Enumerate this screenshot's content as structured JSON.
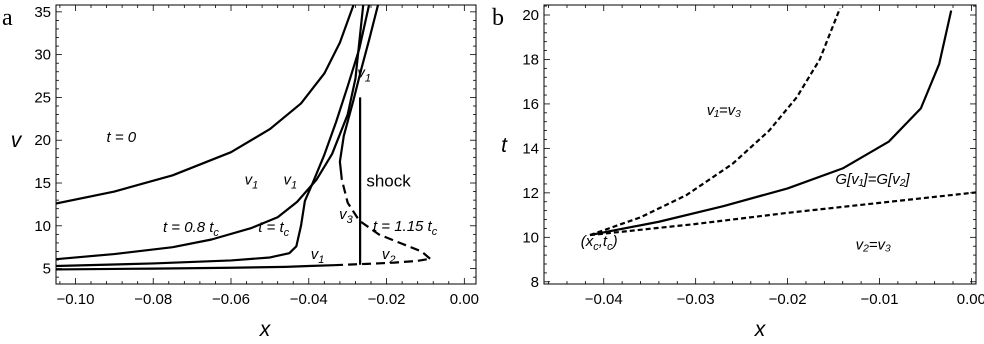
{
  "chart_data": [
    {
      "panel": "a",
      "type": "line",
      "xlabel": "x",
      "ylabel": "v",
      "xlim": [
        -0.105,
        0.003
      ],
      "ylim": [
        3.2,
        35.8
      ],
      "xticks": [
        -0.1,
        -0.08,
        -0.06,
        -0.04,
        -0.02,
        0.0
      ],
      "xtick_labels": [
        "−0.10",
        "−0.08",
        "−0.06",
        "−0.04",
        "−0.02",
        "0.00"
      ],
      "yticks": [
        5,
        10,
        15,
        20,
        25,
        30,
        35
      ],
      "ytick_labels": [
        "5",
        "10",
        "15",
        "20",
        "25",
        "30",
        "35"
      ],
      "series": [
        {
          "style": "solid",
          "x": [
            -0.105,
            -0.09,
            -0.075,
            -0.06,
            -0.05,
            -0.042,
            -0.036,
            -0.032,
            -0.0285
          ],
          "y": [
            12.6,
            14.0,
            15.9,
            18.6,
            21.3,
            24.3,
            27.8,
            31.4,
            35.8
          ]
        },
        {
          "style": "solid",
          "x": [
            -0.105,
            -0.09,
            -0.075,
            -0.065,
            -0.055,
            -0.048,
            -0.043,
            -0.038,
            -0.034,
            -0.03,
            -0.028,
            -0.026
          ],
          "y": [
            6.1,
            6.7,
            7.5,
            8.4,
            9.7,
            11.0,
            12.8,
            15.4,
            18.4,
            23.0,
            27.2,
            35.8
          ]
        },
        {
          "style": "solid",
          "x": [
            -0.105,
            -0.08,
            -0.06,
            -0.05,
            -0.045,
            -0.0432,
            -0.042,
            -0.041,
            -0.039,
            -0.036,
            -0.033,
            -0.03,
            -0.027,
            -0.0245
          ],
          "y": [
            5.3,
            5.6,
            5.95,
            6.3,
            6.8,
            7.6,
            10.0,
            12.9,
            15.0,
            18.3,
            22.1,
            26.3,
            30.7,
            35.8
          ]
        },
        {
          "style": "solid",
          "x": [
            -0.105,
            -0.08,
            -0.06,
            -0.046,
            -0.04,
            -0.0335
          ],
          "y": [
            4.9,
            5.0,
            5.1,
            5.2,
            5.3,
            5.4
          ]
        },
        {
          "style": "dashed",
          "x": [
            -0.0335,
            -0.025,
            -0.018,
            -0.012,
            -0.0088
          ],
          "y": [
            5.4,
            5.55,
            5.7,
            5.9,
            6.15
          ]
        },
        {
          "style": "dashed",
          "x": [
            -0.0088,
            -0.011,
            -0.016,
            -0.022,
            -0.027,
            -0.03,
            -0.0315
          ],
          "y": [
            6.15,
            7.0,
            7.9,
            9.0,
            10.6,
            12.7,
            15.4
          ]
        },
        {
          "style": "solid",
          "x": [
            -0.0315,
            -0.032,
            -0.031,
            -0.0285,
            -0.0265,
            -0.0245,
            -0.0222
          ],
          "y": [
            15.4,
            17.5,
            20.5,
            24.7,
            28.3,
            31.7,
            35.8
          ]
        },
        {
          "style": "thin",
          "x": [
            -0.0268,
            -0.0268
          ],
          "y": [
            5.45,
            25.0
          ]
        }
      ],
      "annotations": [
        {
          "text": "t = 0",
          "x": -0.092,
          "y": 19.8,
          "style": "italic"
        },
        {
          "text": "v",
          "sub": "1",
          "x": -0.0565,
          "y": 14.8,
          "style": "italic"
        },
        {
          "text": "v",
          "sub": "1",
          "x": -0.0465,
          "y": 14.8,
          "style": "italic"
        },
        {
          "text": "t = 0.8 t",
          "sub": "c",
          "x": -0.0775,
          "y": 9.3,
          "style": "italic"
        },
        {
          "text": "t = t",
          "sub": "c",
          "x": -0.053,
          "y": 9.3,
          "style": "italic"
        },
        {
          "text": "v",
          "sub": "1",
          "x": -0.0275,
          "y": 27.3,
          "style": "italic"
        },
        {
          "text": "shock",
          "x": -0.0252,
          "y": 14.6,
          "style": "normal"
        },
        {
          "text": "v",
          "sub": "3",
          "x": -0.0322,
          "y": 10.8,
          "style": "italic"
        },
        {
          "text": "t = 1.15 t",
          "sub": "c",
          "x": -0.0235,
          "y": 9.4,
          "style": "italic"
        },
        {
          "text": "v",
          "sub": "1",
          "x": -0.0395,
          "y": 6.1,
          "style": "italic"
        },
        {
          "text": "v",
          "sub": "2",
          "x": -0.0212,
          "y": 6.1,
          "style": "italic"
        }
      ]
    },
    {
      "panel": "b",
      "type": "line",
      "xlabel": "x",
      "ylabel": "t",
      "xlim": [
        -0.0465,
        0.0005
      ],
      "ylim": [
        7.9,
        20.45
      ],
      "xticks": [
        -0.04,
        -0.03,
        -0.02,
        -0.01,
        0.0
      ],
      "xtick_labels": [
        "−0.04",
        "−0.03",
        "−0.02",
        "−0.01",
        "0.00"
      ],
      "yticks": [
        8,
        10,
        12,
        14,
        16,
        18,
        20
      ],
      "ytick_labels": [
        "8",
        "10",
        "12",
        "14",
        "16",
        "18",
        "20"
      ],
      "series": [
        {
          "style": "dashed",
          "x": [
            -0.0415,
            -0.036,
            -0.031,
            -0.026,
            -0.022,
            -0.019,
            -0.0165,
            -0.0143
          ],
          "y": [
            10.1,
            10.9,
            11.9,
            13.3,
            14.8,
            16.3,
            18.0,
            20.3
          ]
        },
        {
          "style": "solid",
          "x": [
            -0.0415,
            -0.034,
            -0.027,
            -0.02,
            -0.014,
            -0.009,
            -0.0055,
            -0.0035,
            -0.0022
          ],
          "y": [
            10.1,
            10.7,
            11.4,
            12.2,
            13.1,
            14.3,
            15.8,
            17.8,
            20.2
          ]
        },
        {
          "style": "dashed",
          "x": [
            -0.0415,
            -0.03,
            -0.02,
            -0.01,
            0.0005
          ],
          "y": [
            10.1,
            10.6,
            11.1,
            11.55,
            12.02
          ]
        }
      ],
      "annotations": [
        {
          "text": "v₁=v₃",
          "x": -0.0288,
          "y": 15.5,
          "style": "italic"
        },
        {
          "text": "G[v₁]=G[v₂]",
          "x": -0.0148,
          "y": 12.4,
          "style": "italic"
        },
        {
          "text": "v₂=v₃",
          "x": -0.0126,
          "y": 9.45,
          "style": "italic"
        },
        {
          "text": "(x",
          "sub": "c",
          "tail": ",t",
          "sub2": "c",
          "tail2": ")",
          "x": -0.0425,
          "y": 9.6,
          "style": "italic"
        }
      ]
    }
  ],
  "panel_labels": [
    "a",
    "b"
  ]
}
